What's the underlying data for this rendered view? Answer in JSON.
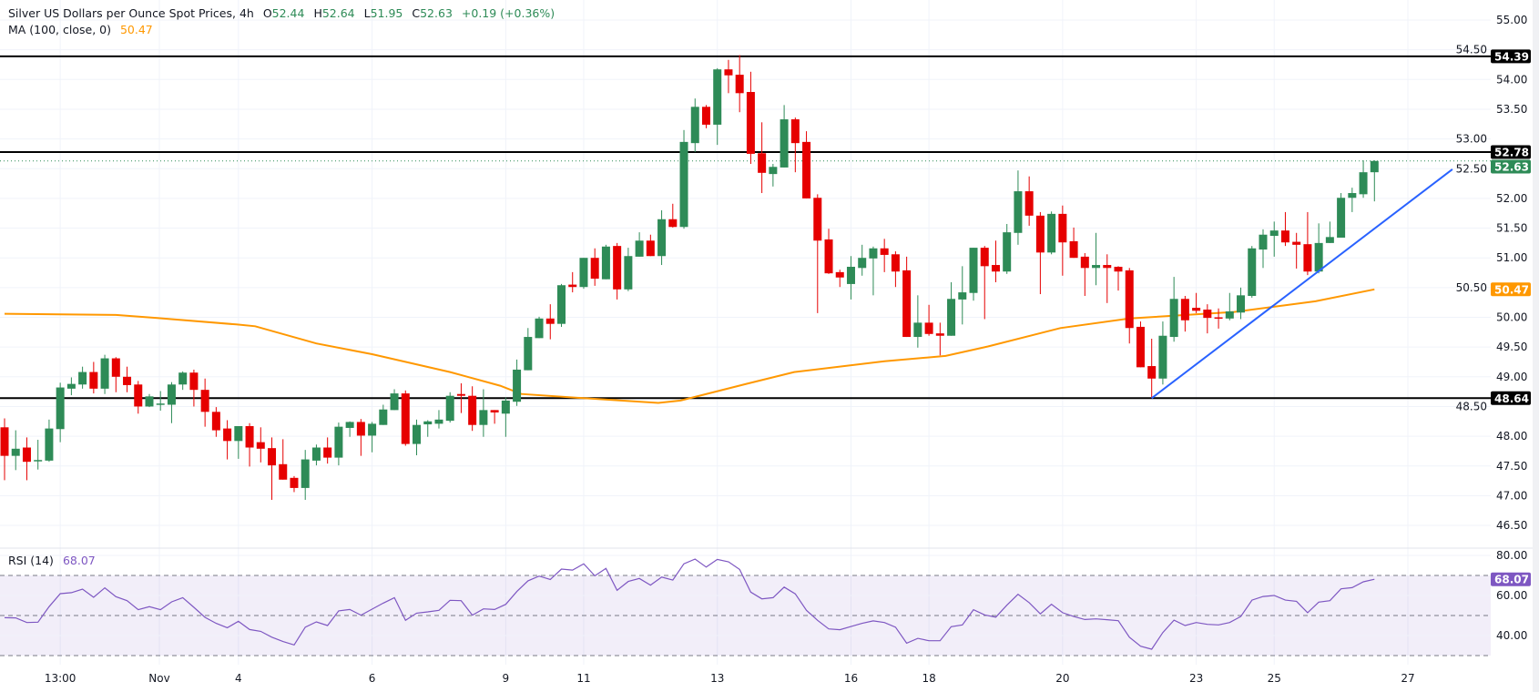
{
  "header": {
    "title": "Silver US Dollars per Ounce Spot Prices, 4h",
    "open_label": "O",
    "open": "52.44",
    "high_label": "H",
    "high": "52.64",
    "low_label": "L",
    "low": "51.95",
    "close_label": "C",
    "close": "52.63",
    "change": "+0.19 (+0.36%)",
    "ma_label": "MA (100, close, 0)",
    "ma_value": "50.47"
  },
  "rsi_header": {
    "label": "RSI (14)",
    "value": "68.07"
  },
  "colors": {
    "up": "#2e8b57",
    "down": "#e60000",
    "ma": "#ff9800",
    "trendline": "#2962ff",
    "rsi": "#7e57c2",
    "level": "#000000",
    "grid": "#f0f3fa"
  },
  "chart_data": [
    {
      "type": "candlestick",
      "title": "Silver US Dollars per Ounce Spot Prices, 4h",
      "ylim": [
        46.3,
        55.3
      ],
      "yticks": [
        "55.00",
        "54.50",
        "54.00",
        "53.50",
        "53.00",
        "52.50",
        "52.00",
        "51.50",
        "51.00",
        "50.50",
        "50.00",
        "49.50",
        "49.00",
        "48.50",
        "48.00",
        "47.50",
        "47.00",
        "46.50"
      ],
      "xticks": [
        {
          "label": "13:00",
          "bar": 5
        },
        {
          "label": "Nov",
          "bar": 13.9
        },
        {
          "label": "4",
          "bar": 21
        },
        {
          "label": "6",
          "bar": 33
        },
        {
          "label": "9",
          "bar": 45
        },
        {
          "label": "11",
          "bar": 52
        },
        {
          "label": "13",
          "bar": 64
        },
        {
          "label": "16",
          "bar": 76
        },
        {
          "label": "18",
          "bar": 83
        },
        {
          "label": "20",
          "bar": 95
        },
        {
          "label": "23",
          "bar": 107
        },
        {
          "label": "25",
          "bar": 114
        },
        {
          "label": "27",
          "bar": 126
        }
      ],
      "grid": true,
      "ohlc": [
        [
          48.15,
          48.3,
          47.26,
          47.67
        ],
        [
          47.67,
          48.1,
          47.43,
          47.79
        ],
        [
          47.81,
          47.98,
          47.26,
          47.57
        ],
        [
          47.6,
          47.94,
          47.44,
          47.6
        ],
        [
          47.59,
          48.28,
          47.57,
          48.13
        ],
        [
          48.12,
          48.9,
          47.9,
          48.82
        ],
        [
          48.8,
          48.99,
          48.69,
          48.88
        ],
        [
          48.87,
          49.17,
          48.8,
          49.08
        ],
        [
          49.08,
          49.25,
          48.72,
          48.8
        ],
        [
          48.8,
          49.37,
          48.71,
          49.31
        ],
        [
          49.31,
          49.33,
          48.74,
          49.0
        ],
        [
          49.0,
          49.17,
          48.74,
          48.86
        ],
        [
          48.87,
          48.93,
          48.38,
          48.5
        ],
        [
          48.5,
          48.71,
          48.49,
          48.67
        ],
        [
          48.55,
          48.76,
          48.43,
          48.55
        ],
        [
          48.53,
          48.91,
          48.22,
          48.87
        ],
        [
          48.87,
          49.09,
          48.78,
          49.07
        ],
        [
          49.07,
          49.12,
          48.5,
          48.78
        ],
        [
          48.78,
          48.97,
          48.16,
          48.41
        ],
        [
          48.41,
          48.49,
          47.99,
          48.1
        ],
        [
          48.13,
          48.27,
          47.61,
          47.92
        ],
        [
          47.92,
          48.17,
          47.62,
          48.17
        ],
        [
          48.17,
          48.22,
          47.49,
          47.81
        ],
        [
          47.9,
          48.15,
          47.56,
          47.79
        ],
        [
          47.8,
          47.98,
          46.93,
          47.51
        ],
        [
          47.53,
          47.95,
          47.27,
          47.27
        ],
        [
          47.3,
          47.33,
          47.06,
          47.13
        ],
        [
          47.13,
          47.77,
          46.93,
          47.61
        ],
        [
          47.59,
          47.86,
          47.51,
          47.81
        ],
        [
          47.81,
          47.98,
          47.54,
          47.64
        ],
        [
          47.64,
          48.23,
          47.51,
          48.16
        ],
        [
          48.14,
          48.25,
          47.99,
          48.24
        ],
        [
          48.24,
          48.29,
          47.67,
          48.01
        ],
        [
          48.01,
          48.24,
          47.73,
          48.21
        ],
        [
          48.19,
          48.53,
          48.19,
          48.45
        ],
        [
          48.44,
          48.79,
          48.44,
          48.72
        ],
        [
          48.72,
          48.77,
          47.84,
          47.87
        ],
        [
          47.87,
          48.28,
          47.68,
          48.19
        ],
        [
          48.2,
          48.27,
          47.99,
          48.25
        ],
        [
          48.21,
          48.44,
          48.13,
          48.28
        ],
        [
          48.26,
          48.74,
          48.23,
          48.68
        ],
        [
          48.71,
          48.89,
          48.39,
          48.68
        ],
        [
          48.68,
          48.84,
          48.09,
          48.19
        ],
        [
          48.19,
          48.79,
          47.99,
          48.44
        ],
        [
          48.44,
          48.44,
          48.21,
          48.4
        ],
        [
          48.38,
          48.65,
          47.99,
          48.6
        ],
        [
          48.58,
          49.29,
          48.51,
          49.12
        ],
        [
          49.11,
          49.82,
          49.11,
          49.67
        ],
        [
          49.65,
          50.01,
          49.65,
          49.98
        ],
        [
          49.98,
          50.22,
          49.63,
          49.89
        ],
        [
          49.89,
          50.56,
          49.84,
          50.54
        ],
        [
          50.55,
          50.76,
          50.42,
          50.51
        ],
        [
          50.51,
          51.0,
          50.48,
          51.0
        ],
        [
          51.0,
          51.16,
          50.53,
          50.65
        ],
        [
          50.64,
          51.22,
          50.64,
          51.19
        ],
        [
          51.2,
          51.25,
          50.3,
          50.47
        ],
        [
          50.47,
          51.17,
          50.44,
          51.03
        ],
        [
          51.02,
          51.43,
          51.02,
          51.29
        ],
        [
          51.29,
          51.39,
          51.03,
          51.03
        ],
        [
          51.03,
          51.8,
          50.88,
          51.65
        ],
        [
          51.65,
          51.91,
          51.51,
          51.52
        ],
        [
          51.52,
          53.15,
          51.49,
          52.95
        ],
        [
          52.93,
          53.68,
          52.78,
          53.54
        ],
        [
          53.54,
          53.57,
          53.18,
          53.24
        ],
        [
          53.24,
          54.19,
          52.9,
          54.17
        ],
        [
          54.17,
          54.33,
          53.77,
          54.07
        ],
        [
          54.08,
          54.41,
          53.45,
          53.77
        ],
        [
          53.79,
          54.13,
          52.58,
          52.75
        ],
        [
          52.76,
          53.28,
          52.09,
          52.43
        ],
        [
          52.41,
          52.58,
          52.2,
          52.53
        ],
        [
          52.52,
          53.57,
          52.52,
          53.33
        ],
        [
          53.33,
          53.36,
          52.44,
          52.93
        ],
        [
          52.95,
          53.13,
          52.0,
          52.0
        ],
        [
          52.01,
          52.07,
          50.07,
          51.29
        ],
        [
          51.31,
          51.49,
          50.73,
          50.74
        ],
        [
          50.76,
          50.8,
          50.51,
          50.67
        ],
        [
          50.56,
          51.03,
          50.3,
          50.85
        ],
        [
          50.83,
          51.22,
          50.7,
          51.0
        ],
        [
          50.99,
          51.19,
          50.37,
          51.16
        ],
        [
          51.16,
          51.32,
          50.76,
          51.05
        ],
        [
          51.06,
          51.11,
          50.51,
          50.77
        ],
        [
          50.79,
          51.02,
          49.67,
          49.67
        ],
        [
          49.67,
          50.37,
          49.49,
          49.91
        ],
        [
          49.91,
          50.21,
          49.69,
          49.72
        ],
        [
          49.73,
          49.91,
          49.36,
          49.69
        ],
        [
          49.69,
          50.59,
          49.69,
          50.31
        ],
        [
          50.3,
          50.86,
          49.88,
          50.42
        ],
        [
          50.41,
          51.17,
          50.28,
          51.17
        ],
        [
          51.17,
          51.2,
          49.97,
          50.86
        ],
        [
          50.88,
          51.29,
          50.59,
          50.77
        ],
        [
          50.77,
          51.57,
          50.73,
          51.43
        ],
        [
          51.42,
          52.47,
          51.22,
          52.12
        ],
        [
          52.12,
          52.37,
          51.54,
          51.71
        ],
        [
          51.71,
          51.77,
          50.39,
          51.09
        ],
        [
          51.09,
          51.78,
          51.06,
          51.74
        ],
        [
          51.74,
          51.88,
          50.7,
          51.26
        ],
        [
          51.28,
          51.51,
          51.0,
          51.0
        ],
        [
          51.02,
          51.08,
          50.36,
          50.83
        ],
        [
          50.83,
          51.42,
          50.54,
          50.88
        ],
        [
          50.88,
          51.06,
          50.24,
          50.83
        ],
        [
          50.85,
          50.86,
          50.45,
          50.77
        ],
        [
          50.79,
          50.83,
          49.56,
          49.82
        ],
        [
          49.84,
          49.93,
          49.16,
          49.16
        ],
        [
          49.18,
          49.64,
          48.64,
          48.97
        ],
        [
          48.97,
          49.93,
          48.87,
          49.69
        ],
        [
          49.67,
          50.68,
          49.59,
          50.31
        ],
        [
          50.31,
          50.36,
          49.76,
          49.95
        ],
        [
          50.16,
          50.41,
          50.07,
          50.11
        ],
        [
          50.13,
          50.22,
          49.73,
          49.99
        ],
        [
          50.0,
          50.15,
          49.81,
          49.99
        ],
        [
          49.98,
          50.41,
          49.95,
          50.1
        ],
        [
          50.08,
          50.5,
          49.97,
          50.37
        ],
        [
          50.36,
          51.2,
          50.33,
          51.16
        ],
        [
          51.14,
          51.48,
          50.83,
          51.39
        ],
        [
          51.37,
          51.61,
          51.02,
          51.46
        ],
        [
          51.46,
          51.77,
          51.2,
          51.26
        ],
        [
          51.27,
          51.42,
          50.82,
          51.22
        ],
        [
          51.23,
          51.77,
          50.71,
          50.77
        ],
        [
          50.77,
          51.58,
          50.74,
          51.25
        ],
        [
          51.25,
          51.61,
          51.25,
          51.35
        ],
        [
          51.34,
          52.09,
          51.34,
          52.01
        ],
        [
          52.01,
          52.18,
          51.77,
          52.09
        ],
        [
          52.07,
          52.64,
          52.01,
          52.44
        ],
        [
          52.44,
          52.64,
          51.95,
          52.63
        ]
      ],
      "moving_average": {
        "name": "MA (100, close, 0)",
        "points": [
          [
            0,
            50.06
          ],
          [
            10,
            50.04
          ],
          [
            13.7,
            49.99
          ],
          [
            20.8,
            49.88
          ],
          [
            22.5,
            49.85
          ],
          [
            28,
            49.56
          ],
          [
            33,
            49.38
          ],
          [
            40,
            49.08
          ],
          [
            44.5,
            48.85
          ],
          [
            46.4,
            48.71
          ],
          [
            52,
            48.64
          ],
          [
            58.7,
            48.56
          ],
          [
            60.7,
            48.6
          ],
          [
            66.6,
            48.88
          ],
          [
            70.9,
            49.08
          ],
          [
            79,
            49.26
          ],
          [
            84.5,
            49.35
          ],
          [
            88.3,
            49.51
          ],
          [
            94.8,
            49.82
          ],
          [
            101,
            49.98
          ],
          [
            110.4,
            50.09
          ],
          [
            117.7,
            50.27
          ],
          [
            123,
            50.47
          ]
        ]
      },
      "horizontal_levels": [
        {
          "price": 54.39,
          "label": "54.39"
        },
        {
          "price": 52.78,
          "label": "52.78"
        },
        {
          "price": 48.64,
          "label": "48.64"
        }
      ],
      "last_price": {
        "price": 52.63,
        "label": "52.63"
      },
      "ma_badge": {
        "price": 50.47,
        "label": "50.47"
      },
      "trendline": [
        {
          "bar": 103,
          "price": 48.64
        },
        {
          "bar": 130,
          "price": 52.49
        }
      ]
    },
    {
      "type": "line",
      "title": "RSI (14)",
      "ylim": [
        25,
        84
      ],
      "yticks": [
        "80.00",
        "60.00",
        "40.00"
      ],
      "levels": [
        70,
        50,
        30
      ],
      "band": [
        30,
        70
      ],
      "last": {
        "value": 68.07,
        "label": "68.07"
      },
      "values": [
        48.9,
        48.8,
        46.5,
        46.7,
        54.4,
        60.9,
        61.4,
        63.2,
        59.1,
        63.8,
        59.4,
        57.4,
        52.9,
        54.4,
        52.9,
        56.8,
        58.9,
        54.1,
        49.1,
        46.1,
        43.9,
        47.1,
        43.0,
        42.1,
        39.2,
        37.0,
        35.3,
        44.2,
        46.8,
        45.0,
        52.3,
        53.0,
        50.2,
        53.2,
        56.2,
        58.9,
        47.6,
        51.2,
        51.8,
        52.6,
        57.6,
        57.4,
        50.2,
        53.3,
        53.0,
        55.6,
        62.0,
        67.3,
        69.7,
        68.0,
        73.2,
        72.7,
        75.8,
        69.8,
        73.5,
        62.6,
        67.0,
        68.5,
        65.2,
        69.2,
        67.7,
        75.8,
        78.2,
        74.2,
        78.0,
        76.8,
        73.0,
        61.7,
        58.3,
        58.9,
        64.2,
        60.8,
        52.6,
        47.6,
        43.3,
        42.9,
        44.5,
        46.1,
        47.3,
        46.5,
        44.2,
        36.2,
        38.6,
        37.4,
        37.4,
        44.4,
        45.3,
        52.9,
        50.3,
        49.2,
        55.2,
        60.6,
        56.4,
        50.8,
        55.6,
        51.4,
        49.5,
        48.0,
        48.3,
        47.9,
        47.4,
        39.2,
        34.7,
        33.2,
        41.5,
        47.7,
        45.0,
        46.5,
        45.6,
        45.3,
        46.5,
        49.5,
        57.7,
        59.5,
        60.0,
        57.7,
        57.1,
        51.4,
        56.7,
        57.4,
        63.3,
        63.9,
        66.8,
        68.07
      ]
    }
  ]
}
